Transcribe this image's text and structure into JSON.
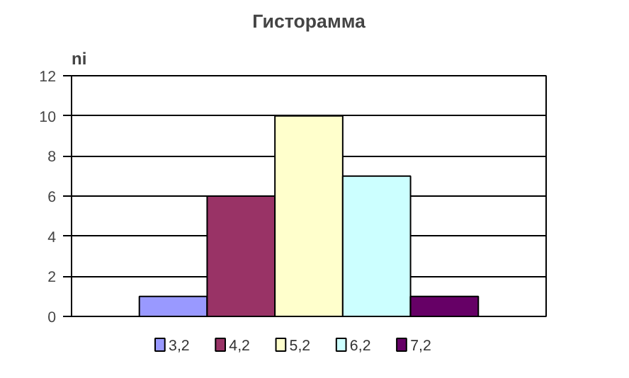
{
  "chart_data": {
    "type": "bar",
    "title": "Гисторамма",
    "ylabel": "ni",
    "categories": [
      null
    ],
    "series": [
      {
        "name": "3,2",
        "color": "#9999ff",
        "values": [
          1
        ]
      },
      {
        "name": "4,2",
        "color": "#993366",
        "values": [
          6
        ]
      },
      {
        "name": "5,2",
        "color": "#ffffcc",
        "values": [
          10
        ]
      },
      {
        "name": "6,2",
        "color": "#ccffff",
        "values": [
          7
        ]
      },
      {
        "name": "7,2",
        "color": "#660066",
        "values": [
          1
        ]
      }
    ],
    "ylim": [
      0,
      12
    ],
    "yticks": [
      0,
      2,
      4,
      6,
      8,
      10,
      12
    ],
    "grid": "y",
    "legend": "bottom"
  }
}
